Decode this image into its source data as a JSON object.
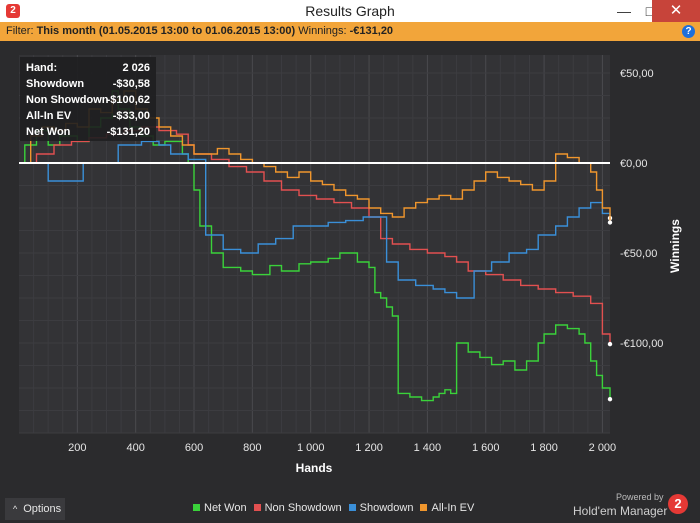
{
  "window": {
    "title": "Results Graph",
    "app_icon": "2",
    "minimize_glyph": "—",
    "maximize_glyph": "□",
    "close_glyph": "✕"
  },
  "filter": {
    "label": "Filter:",
    "value": "This month (01.05.2015 13:00 to 01.06.2015 13:00)",
    "winnings_label": "Winnings:",
    "winnings_value": "-€131,20",
    "help_glyph": "?"
  },
  "options": {
    "label": "Options",
    "chevron_glyph": "^"
  },
  "brand": {
    "powered_by": "Powered by",
    "name": "Hold'em Manager",
    "logo_text": "2"
  },
  "colors": {
    "net_won": "#3ad23a",
    "non_showdown": "#e25050",
    "showdown": "#3a8fd8",
    "all_in_ev": "#f0962d",
    "zero_line": "#ffffff",
    "background": "#2b2b2d"
  },
  "chart_data": {
    "type": "line",
    "xlabel": "Hands",
    "ylabel": "Winnings",
    "xlim": [
      0,
      2026
    ],
    "ylim": [
      -150,
      60
    ],
    "x_ticks": [
      200,
      400,
      600,
      800,
      1000,
      1200,
      1400,
      1600,
      1800,
      2000
    ],
    "x_tick_labels": [
      "200",
      "400",
      "600",
      "800",
      "1 000",
      "1 200",
      "1 400",
      "1 600",
      "1 800",
      "2 000"
    ],
    "y_ticks": [
      50,
      0,
      -50,
      -100
    ],
    "y_tick_labels": [
      "€50,00",
      "€0,00",
      "-€50,00",
      "-€100,00"
    ],
    "grid": true,
    "legend_position": "bottom",
    "tooltip": {
      "rows": [
        {
          "label": "Hand:",
          "value": "2 026"
        },
        {
          "label": "Showdown",
          "value": "-$30,58"
        },
        {
          "label": "Non Showdown",
          "value": "-$100,62"
        },
        {
          "label": "All-In EV",
          "value": "-$33,00"
        },
        {
          "label": "Net Won",
          "value": "-$131,20"
        }
      ]
    },
    "series": [
      {
        "name": "Net Won",
        "color": "#3ad23a",
        "x": [
          0,
          20,
          60,
          100,
          140,
          200,
          240,
          280,
          320,
          340,
          380,
          420,
          460,
          500,
          560,
          580,
          600,
          620,
          660,
          700,
          760,
          800,
          860,
          900,
          960,
          1000,
          1060,
          1100,
          1160,
          1200,
          1220,
          1240,
          1260,
          1280,
          1300,
          1340,
          1380,
          1420,
          1440,
          1460,
          1480,
          1500,
          1540,
          1580,
          1620,
          1660,
          1700,
          1740,
          1780,
          1800,
          1840,
          1880,
          1920,
          1940,
          1960,
          1980,
          2000,
          2026
        ],
        "y": [
          0,
          10,
          18,
          10,
          15,
          12,
          20,
          25,
          40,
          30,
          20,
          15,
          10,
          12,
          5,
          0,
          -15,
          -35,
          -50,
          -58,
          -60,
          -62,
          -57,
          -60,
          -56,
          -55,
          -53,
          -50,
          -55,
          -58,
          -72,
          -75,
          -80,
          -85,
          -128,
          -130,
          -132,
          -130,
          -128,
          -126,
          -128,
          -100,
          -105,
          -108,
          -112,
          -110,
          -115,
          -110,
          -100,
          -95,
          -90,
          -92,
          -95,
          -100,
          -110,
          -118,
          -125,
          -131.2
        ]
      },
      {
        "name": "Non Showdown",
        "color": "#e25050",
        "x": [
          0,
          60,
          120,
          180,
          240,
          300,
          360,
          420,
          480,
          540,
          580,
          600,
          660,
          720,
          780,
          840,
          900,
          960,
          1020,
          1080,
          1140,
          1200,
          1240,
          1280,
          1340,
          1400,
          1460,
          1500,
          1540,
          1600,
          1660,
          1720,
          1780,
          1840,
          1900,
          1960,
          2000,
          2026
        ],
        "y": [
          0,
          5,
          10,
          12,
          14,
          16,
          18,
          20,
          18,
          16,
          10,
          5,
          2,
          -2,
          -5,
          -10,
          -15,
          -18,
          -20,
          -22,
          -25,
          -30,
          -42,
          -45,
          -48,
          -50,
          -52,
          -55,
          -60,
          -62,
          -65,
          -68,
          -70,
          -72,
          -74,
          -78,
          -95,
          -100.62
        ]
      },
      {
        "name": "Showdown",
        "color": "#3a8fd8",
        "x": [
          0,
          60,
          100,
          180,
          220,
          300,
          340,
          420,
          480,
          520,
          580,
          640,
          700,
          760,
          820,
          880,
          940,
          1000,
          1060,
          1120,
          1180,
          1220,
          1260,
          1300,
          1360,
          1420,
          1460,
          1500,
          1560,
          1620,
          1680,
          1740,
          1780,
          1840,
          1880,
          1920,
          1960,
          2000,
          2026
        ],
        "y": [
          0,
          0,
          -10,
          -10,
          0,
          0,
          10,
          12,
          10,
          5,
          2,
          -40,
          -48,
          -50,
          -45,
          -42,
          -35,
          -35,
          -33,
          -32,
          -30,
          -30,
          -55,
          -65,
          -68,
          -70,
          -72,
          -75,
          -60,
          -55,
          -50,
          -48,
          -40,
          -35,
          -30,
          -25,
          -22,
          -28,
          -30.58
        ]
      },
      {
        "name": "All-In EV",
        "color": "#f0962d",
        "x": [
          0,
          40,
          80,
          120,
          160,
          200,
          240,
          280,
          320,
          360,
          400,
          440,
          480,
          520,
          560,
          600,
          640,
          680,
          720,
          760,
          800,
          840,
          880,
          920,
          960,
          1000,
          1040,
          1080,
          1120,
          1160,
          1200,
          1240,
          1280,
          1320,
          1360,
          1400,
          1440,
          1480,
          1520,
          1560,
          1600,
          1640,
          1680,
          1720,
          1760,
          1800,
          1840,
          1880,
          1920,
          1960,
          1980,
          2000,
          2026
        ],
        "y": [
          0,
          15,
          20,
          18,
          22,
          20,
          30,
          28,
          35,
          40,
          30,
          25,
          20,
          15,
          10,
          5,
          5,
          8,
          5,
          2,
          0,
          -2,
          -5,
          -8,
          -5,
          -10,
          -12,
          -15,
          -18,
          -20,
          -25,
          -28,
          -30,
          -25,
          -22,
          -20,
          -18,
          -20,
          -15,
          -10,
          -5,
          -8,
          -10,
          -12,
          -15,
          -10,
          5,
          3,
          0,
          -5,
          -15,
          -25,
          -33
        ]
      }
    ]
  }
}
